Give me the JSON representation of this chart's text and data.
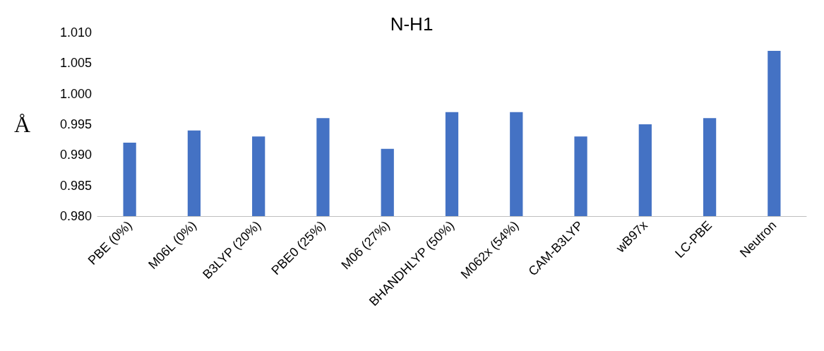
{
  "chart_data": {
    "type": "bar",
    "title": "N-H1",
    "ylabel": "Å",
    "categories": [
      "PBE (0%)",
      "M06L (0%)",
      "B3LYP (20%)",
      "PBE0 (25%)",
      "M06 (27%)",
      "BHANDHLYP (50%)",
      "M062x (54%)",
      "CAM-B3LYP",
      "wB97x",
      "LC-PBE",
      "Neutron"
    ],
    "values": [
      0.992,
      0.994,
      0.993,
      0.996,
      0.991,
      0.997,
      0.997,
      0.993,
      0.995,
      0.996,
      1.007
    ],
    "color": "#4472c4",
    "ylim": [
      0.98,
      1.01
    ],
    "yticks": [
      {
        "value": 0.98,
        "label": "0.980"
      },
      {
        "value": 0.985,
        "label": "0.985"
      },
      {
        "value": 0.99,
        "label": "0.990"
      },
      {
        "value": 0.995,
        "label": "0.995"
      },
      {
        "value": 1.0,
        "label": "1.000"
      },
      {
        "value": 1.005,
        "label": "1.005"
      },
      {
        "value": 1.01,
        "label": "1.010"
      }
    ],
    "grid": false
  }
}
